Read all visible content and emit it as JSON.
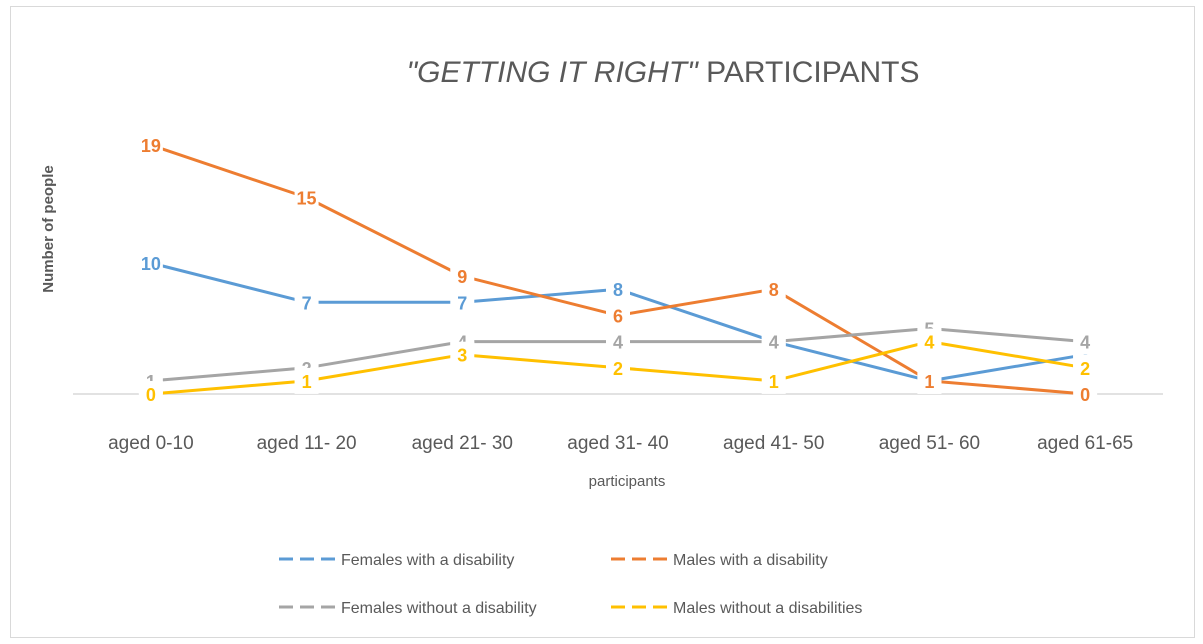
{
  "chart_data": {
    "type": "line",
    "title_quoted": "\"GETTING IT RIGHT\"",
    "title_rest": " PARTICIPANTS",
    "xlabel": "participants",
    "ylabel": "Number of people",
    "categories": [
      "aged 0-10",
      "aged 11- 20",
      "aged 21- 30",
      "aged 31- 40",
      "aged 41- 50",
      "aged 51- 60",
      "aged 61-65"
    ],
    "ylim": [
      0,
      20
    ],
    "grid": false,
    "legend_position": "bottom",
    "series": [
      {
        "name": "Females with a disability",
        "color": "#5b9bd5",
        "values": [
          10,
          7,
          7,
          8,
          4,
          1,
          3
        ]
      },
      {
        "name": "Males with a disability",
        "color": "#ed7d31",
        "values": [
          19,
          15,
          9,
          6,
          8,
          1,
          0
        ]
      },
      {
        "name": "Females without a disability",
        "color": "#a5a5a5",
        "values": [
          1,
          2,
          4,
          4,
          4,
          5,
          4
        ]
      },
      {
        "name": "Males without a disabilities",
        "color": "#ffc000",
        "values": [
          0,
          1,
          3,
          2,
          1,
          4,
          2
        ]
      }
    ]
  }
}
